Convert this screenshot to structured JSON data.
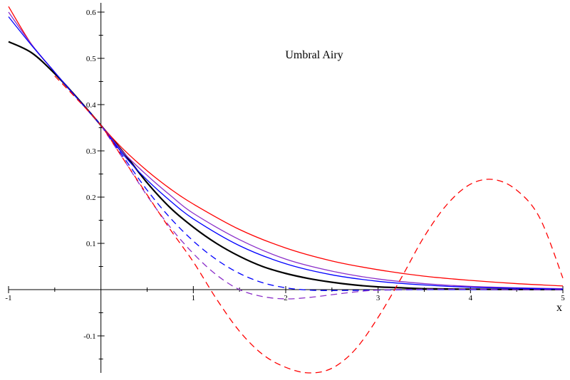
{
  "chart_data": {
    "type": "line",
    "title": "Umbral Airy",
    "xlabel": "x",
    "ylabel": "",
    "xlim": [
      -1,
      5
    ],
    "ylim": [
      -0.18,
      0.62
    ],
    "x_ticks": [
      -1,
      1,
      2,
      3,
      4,
      5
    ],
    "x_tick_labels": [
      "-1",
      "1",
      "2",
      "3",
      "4",
      "5"
    ],
    "y_ticks": [
      -0.1,
      0.1,
      0.2,
      0.3,
      0.4,
      0.5,
      0.6
    ],
    "y_tick_labels": [
      "-0.1",
      "0.1",
      "0.2",
      "0.3",
      "0.4",
      "0.5",
      "0.6"
    ],
    "grid": false,
    "colors": {
      "black": "#000000",
      "red": "#ff0000",
      "blue": "#0000ff",
      "purple": "#8b2fc9"
    },
    "series": [
      {
        "color": "#000000",
        "dash": "solid",
        "width": 2.2,
        "x": [
          -1,
          -0.75,
          -0.5,
          -0.25,
          0,
          0.25,
          0.5,
          0.75,
          1,
          1.25,
          1.5,
          1.75,
          2,
          2.25,
          2.5,
          2.75,
          3,
          3.25,
          3.5,
          4,
          4.5,
          5
        ],
        "y": [
          0.536,
          0.512,
          0.467,
          0.413,
          0.355,
          0.295,
          0.231,
          0.177,
          0.135,
          0.1,
          0.072,
          0.05,
          0.035,
          0.024,
          0.016,
          0.01,
          0.006,
          0.004,
          0.002,
          0.001,
          0.0003,
          0.0001
        ]
      },
      {
        "color": "#ff0000",
        "dash": "solid",
        "width": 1.3,
        "x": [
          -1,
          -0.75,
          -0.5,
          -0.25,
          0,
          0.25,
          0.5,
          0.75,
          1,
          1.5,
          2,
          2.5,
          3,
          3.5,
          4,
          4.5,
          5
        ],
        "y": [
          0.612,
          0.53,
          0.47,
          0.412,
          0.355,
          0.302,
          0.257,
          0.218,
          0.185,
          0.13,
          0.09,
          0.062,
          0.043,
          0.029,
          0.02,
          0.013,
          0.008
        ]
      },
      {
        "color": "#8b2fc9",
        "dash": "solid",
        "width": 1.3,
        "x": [
          -1,
          -0.75,
          -0.5,
          -0.25,
          0,
          0.25,
          0.5,
          0.75,
          1,
          1.5,
          2,
          2.5,
          3,
          3.5,
          4,
          4.5,
          5
        ],
        "y": [
          0.6,
          0.53,
          0.47,
          0.412,
          0.355,
          0.295,
          0.247,
          0.204,
          0.165,
          0.108,
          0.066,
          0.04,
          0.023,
          0.013,
          0.007,
          0.004,
          0.002
        ]
      },
      {
        "color": "#0000ff",
        "dash": "solid",
        "width": 1.3,
        "x": [
          -1,
          -0.75,
          -0.5,
          -0.25,
          0,
          0.25,
          0.5,
          0.75,
          1,
          1.5,
          2,
          2.5,
          3,
          3.5,
          4,
          4.5,
          5
        ],
        "y": [
          0.59,
          0.528,
          0.47,
          0.412,
          0.355,
          0.29,
          0.237,
          0.192,
          0.153,
          0.095,
          0.056,
          0.032,
          0.018,
          0.01,
          0.005,
          0.003,
          0.001
        ]
      },
      {
        "color": "#0000ff",
        "dash": "dashed",
        "width": 1.3,
        "x": [
          0,
          0.25,
          0.5,
          0.75,
          1,
          1.25,
          1.5,
          1.75,
          2,
          2.25,
          2.5,
          3,
          3.5,
          4,
          4.5,
          5
        ],
        "y": [
          0.355,
          0.285,
          0.215,
          0.155,
          0.105,
          0.065,
          0.035,
          0.015,
          0.004,
          -0.001,
          -0.002,
          -0.001,
          0,
          0,
          0,
          0
        ]
      },
      {
        "color": "#8b2fc9",
        "dash": "dashed",
        "width": 1.3,
        "x": [
          0,
          0.25,
          0.5,
          0.75,
          1,
          1.25,
          1.5,
          1.75,
          2,
          2.25,
          2.5,
          2.75,
          3,
          3.5,
          4,
          4.5,
          5
        ],
        "y": [
          0.355,
          0.28,
          0.203,
          0.135,
          0.078,
          0.032,
          0.0,
          -0.015,
          -0.02,
          -0.017,
          -0.011,
          -0.005,
          -0.001,
          0.001,
          0.001,
          0.0,
          0.0
        ]
      },
      {
        "color": "#ff0000",
        "dash": "dashed",
        "width": 1.3,
        "x": [
          -0.5,
          -0.25,
          0,
          0.25,
          0.5,
          0.75,
          1,
          1.25,
          1.5,
          1.75,
          2,
          2.25,
          2.5,
          2.75,
          3,
          3.25,
          3.5,
          3.75,
          4,
          4.25,
          4.5,
          4.75,
          5
        ],
        "y": [
          0.462,
          0.41,
          0.355,
          0.28,
          0.205,
          0.13,
          0.06,
          -0.02,
          -0.09,
          -0.14,
          -0.168,
          -0.18,
          -0.17,
          -0.13,
          -0.06,
          0.025,
          0.115,
          0.185,
          0.228,
          0.238,
          0.215,
          0.155,
          0.025
        ]
      }
    ]
  }
}
